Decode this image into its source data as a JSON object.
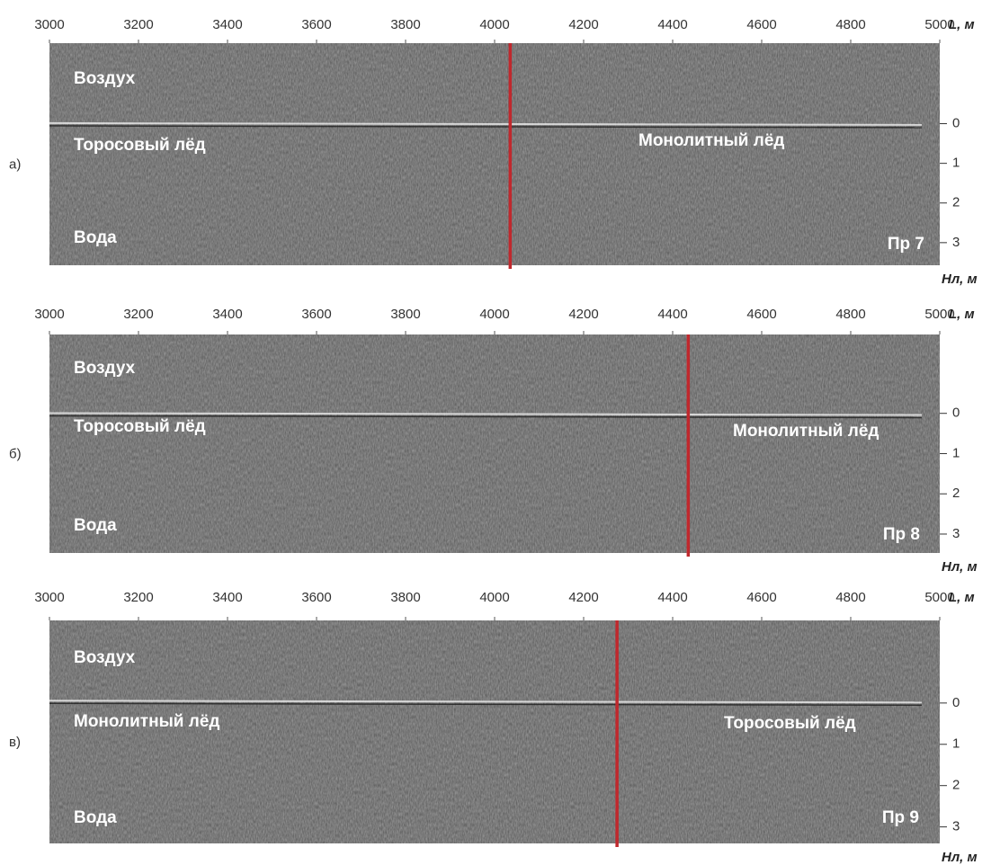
{
  "chart_data": [
    {
      "type": "radargram",
      "panel_label": "а)",
      "xlabel": "L, м",
      "ylabel": "Hл, м",
      "xlim": [
        3000,
        5000
      ],
      "xticks": [
        3000,
        3200,
        3400,
        3600,
        3800,
        4000,
        4200,
        4400,
        4600,
        4800,
        5000
      ],
      "ylim": [
        3.57,
        -2.03
      ],
      "yticks": [
        0,
        1,
        2,
        3
      ],
      "annotations": [
        "Воздух",
        "Торосовый лёд",
        "Вода",
        "Монолитный лёд"
      ],
      "profile": "Пр 7",
      "boundary": 4035,
      "boundary_color": "#c0282d"
    },
    {
      "type": "radargram",
      "panel_label": "б)",
      "xlabel": "L, м",
      "ylabel": "Hл, м",
      "xlim": [
        3000,
        5000
      ],
      "xticks": [
        3000,
        3200,
        3400,
        3600,
        3800,
        4000,
        4200,
        4400,
        4600,
        4800,
        5000
      ],
      "ylim": [
        3.47,
        -1.96
      ],
      "yticks": [
        0,
        1,
        2,
        3
      ],
      "annotations": [
        "Воздух",
        "Торосовый лёд",
        "Вода",
        "Монолитный лёд"
      ],
      "profile": "Пр 8",
      "boundary": 4435,
      "boundary_color": "#c0282d"
    },
    {
      "type": "radargram",
      "panel_label": "в)",
      "xlabel": "L, м",
      "ylabel": "Hл, м",
      "xlim": [
        3000,
        5000
      ],
      "xticks": [
        3000,
        3200,
        3400,
        3600,
        3800,
        4000,
        4200,
        4400,
        4600,
        4800,
        5000
      ],
      "ylim": [
        3.4,
        -2.0
      ],
      "yticks": [
        0,
        1,
        2,
        3
      ],
      "annotations": [
        "Воздух",
        "Монолитный лёд",
        "Вода",
        "Торосовый лёд"
      ],
      "profile": "Пр 9",
      "boundary": 4275,
      "boundary_color": "#c0282d"
    }
  ]
}
